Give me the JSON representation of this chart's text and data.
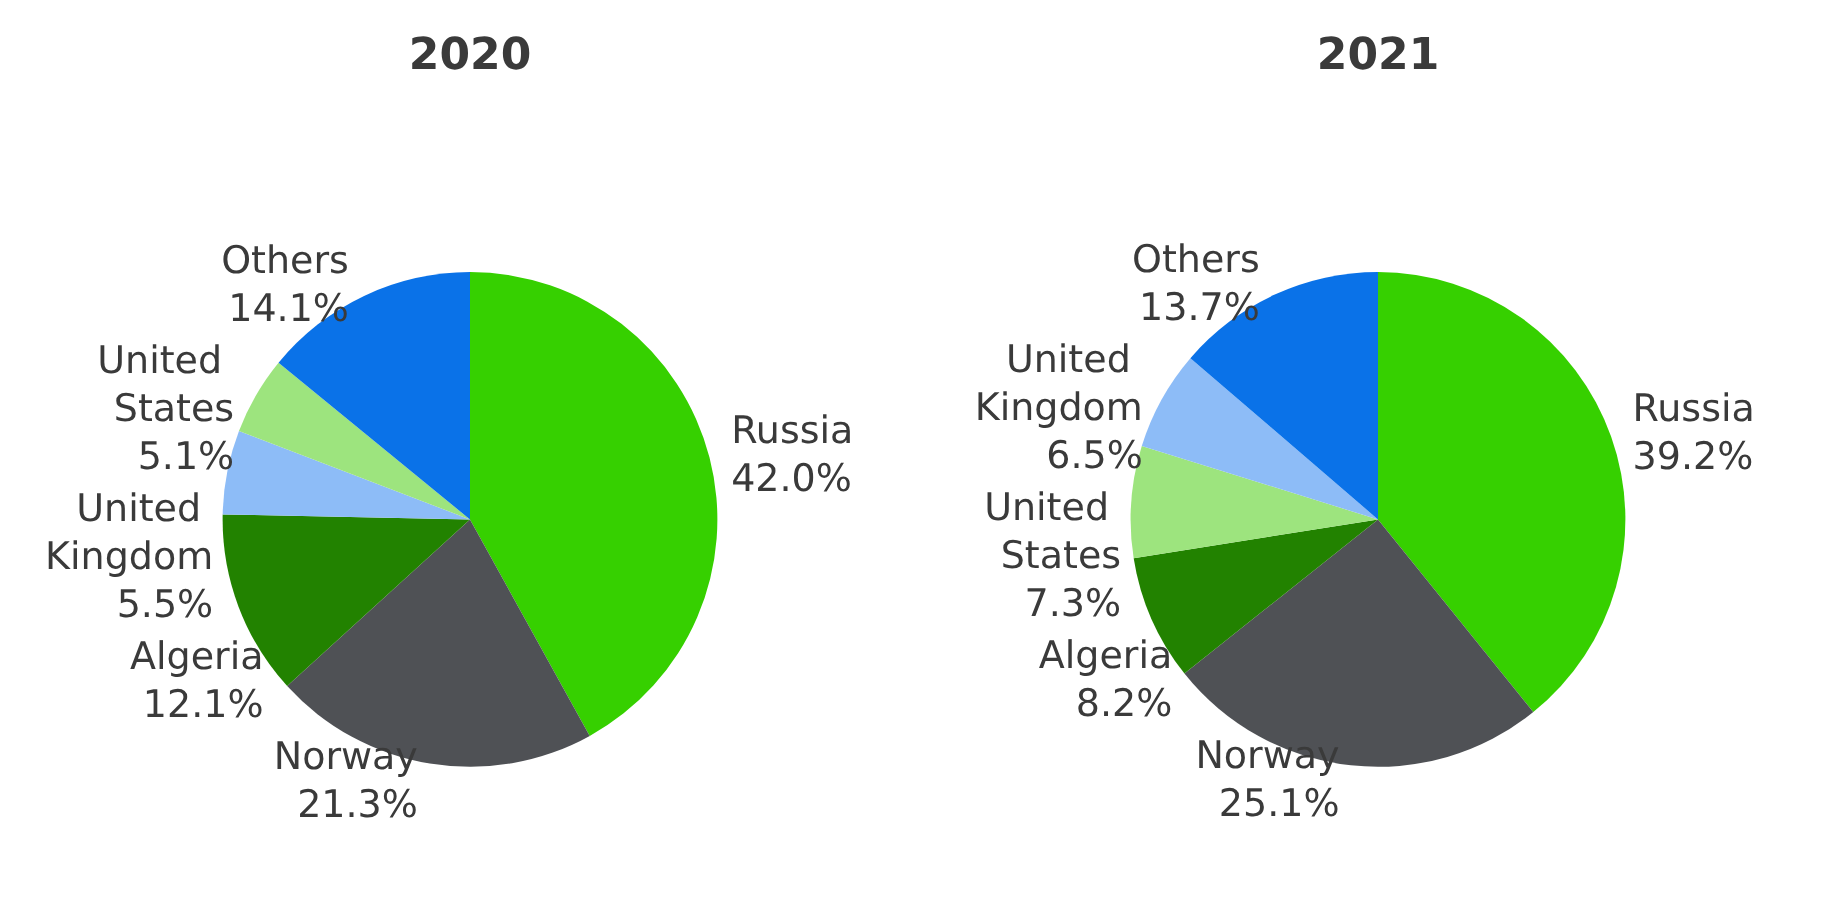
{
  "chart_data": [
    {
      "type": "pie",
      "title": "2020",
      "categories": [
        "Russia",
        "Norway",
        "Algeria",
        "United Kingdom",
        "United States",
        "Others"
      ],
      "values": [
        42.0,
        21.3,
        12.1,
        5.5,
        5.1,
        14.1
      ],
      "value_labels": [
        "42.0%",
        "21.3%",
        "12.1%",
        "5.5%",
        "5.1%",
        "14.1%"
      ],
      "colors": [
        "#36d000",
        "#4f5155",
        "#228200",
        "#8dbcf7",
        "#9de47e",
        "#0a72e8"
      ],
      "legend": false
    },
    {
      "type": "pie",
      "title": "2021",
      "categories": [
        "Russia",
        "Norway",
        "Algeria",
        "United States",
        "United Kingdom",
        "Others"
      ],
      "values": [
        39.2,
        25.1,
        8.2,
        7.3,
        6.5,
        13.7
      ],
      "value_labels": [
        "39.2%",
        "25.1%",
        "8.2%",
        "7.3%",
        "6.5%",
        "13.7%"
      ],
      "colors": [
        "#36d000",
        "#4f5155",
        "#228200",
        "#9de47e",
        "#8dbcf7",
        "#0a72e8"
      ],
      "legend": false
    }
  ]
}
